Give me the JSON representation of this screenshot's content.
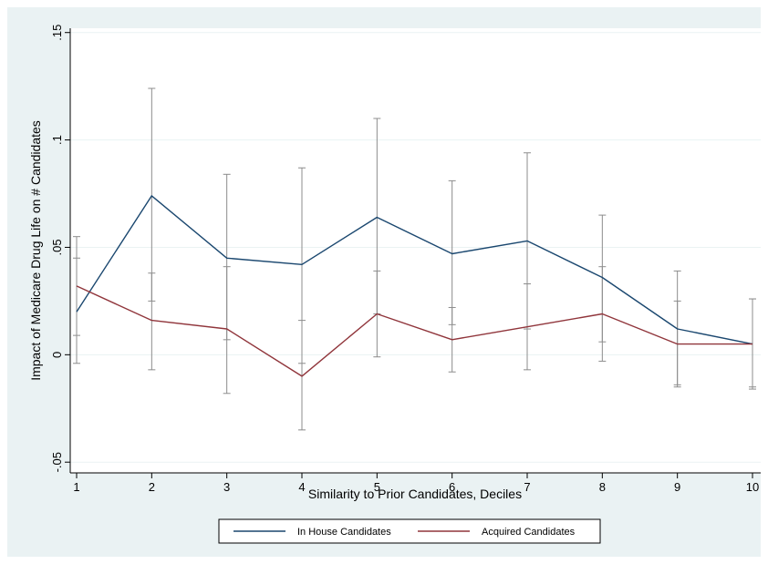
{
  "chart_data": {
    "type": "line",
    "xlabel": "Similarity to Prior Candidates, Deciles",
    "ylabel": "Impact of Medicare Drug Life on # Candidates",
    "x": [
      1,
      2,
      3,
      4,
      5,
      6,
      7,
      8,
      9,
      10
    ],
    "x_ticks": [
      "1",
      "2",
      "3",
      "4",
      "5",
      "6",
      "7",
      "8",
      "9",
      "10"
    ],
    "y_ticks": [
      {
        "value": -0.05,
        "label": "-.05"
      },
      {
        "value": 0,
        "label": "0"
      },
      {
        "value": 0.05,
        "label": ".05"
      },
      {
        "value": 0.1,
        "label": ".1"
      },
      {
        "value": 0.15,
        "label": ".15"
      }
    ],
    "xlim": [
      1,
      10
    ],
    "ylim": [
      -0.055,
      0.152
    ],
    "grid": true,
    "legend_position": "bottom",
    "series": [
      {
        "name": "In House Candidates",
        "color": "#1a476f",
        "values": [
          0.02,
          0.074,
          0.045,
          0.042,
          0.064,
          0.047,
          0.053,
          0.036,
          0.012,
          0.005
        ],
        "ci_low": [
          -0.004,
          0.025,
          0.007,
          -0.004,
          0.019,
          0.014,
          0.012,
          0.006,
          -0.015,
          -0.016
        ],
        "ci_high": [
          0.045,
          0.124,
          0.084,
          0.087,
          0.11,
          0.081,
          0.094,
          0.065,
          0.039,
          0.026
        ]
      },
      {
        "name": "Acquired Candidates",
        "color": "#90353b",
        "values": [
          0.032,
          0.016,
          0.012,
          -0.01,
          0.019,
          0.007,
          0.013,
          0.019,
          0.005,
          0.005
        ],
        "ci_low": [
          0.009,
          -0.007,
          -0.018,
          -0.035,
          -0.001,
          -0.008,
          -0.007,
          -0.003,
          -0.014,
          -0.015
        ],
        "ci_high": [
          0.055,
          0.038,
          0.041,
          0.016,
          0.039,
          0.022,
          0.033,
          0.041,
          0.025,
          0.026
        ]
      }
    ]
  }
}
